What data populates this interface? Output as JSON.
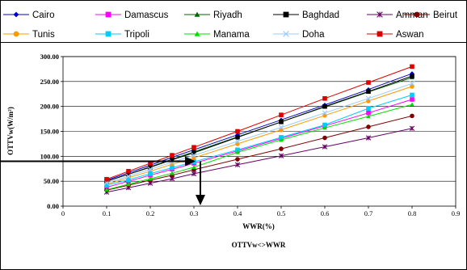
{
  "chart_data": {
    "type": "line",
    "title": "OTTVw<>WWR",
    "xlabel": "WWR(%)",
    "ylabel": "OTTVw(W/m²)",
    "xlim": [
      0,
      0.9
    ],
    "ylim": [
      0,
      300
    ],
    "x_ticks": [
      "0",
      "0.1",
      "0.2",
      "0.3",
      "0.4",
      "0.5",
      "0.6",
      "0.7",
      "0.8",
      "0.9"
    ],
    "y_ticks": [
      "0.00",
      "50.00",
      "100.00",
      "150.00",
      "200.00",
      "250.00",
      "300.00"
    ],
    "legend_position": "top",
    "grid": "horizontal",
    "x": [
      0.1,
      0.15,
      0.2,
      0.25,
      0.3,
      0.4,
      0.5,
      0.6,
      0.7,
      0.8
    ],
    "series": [
      {
        "name": "Cairo",
        "color": "#0000cc",
        "marker": "diamond",
        "values": [
          52,
          67,
          82,
          98,
          113,
          143,
          173,
          203,
          234,
          266
        ]
      },
      {
        "name": "Damascus",
        "color": "#ff00ff",
        "marker": "square",
        "values": [
          38,
          50,
          62,
          74,
          86,
          111,
          136,
          161,
          187,
          214
        ]
      },
      {
        "name": "Riyadh",
        "color": "#006600",
        "marker": "triangle",
        "values": [
          50,
          64,
          79,
          94,
          109,
          139,
          169,
          199,
          229,
          258
        ]
      },
      {
        "name": "Baghdad",
        "color": "#000000",
        "marker": "square",
        "values": [
          50,
          64,
          78,
          93,
          107,
          138,
          169,
          200,
          230,
          261
        ]
      },
      {
        "name": "Amman",
        "color": "#660066",
        "marker": "star",
        "values": [
          28,
          37,
          46,
          55,
          65,
          83,
          101,
          119,
          137,
          156
        ]
      },
      {
        "name": "Beirut",
        "color": "#800000",
        "marker": "circle",
        "values": [
          32,
          42,
          52,
          62,
          73,
          94,
          115,
          137,
          159,
          181
        ]
      },
      {
        "name": "Tunis",
        "color": "#ff9900",
        "marker": "circle",
        "values": [
          44,
          57,
          70,
          84,
          97,
          125,
          153,
          182,
          211,
          240
        ]
      },
      {
        "name": "Tripoli",
        "color": "#00ccff",
        "marker": "square",
        "values": [
          42,
          53,
          65,
          77,
          89,
          113,
          138,
          163,
          196,
          223
        ]
      },
      {
        "name": "Manama",
        "color": "#00dd00",
        "marker": "triangle",
        "values": [
          33,
          44,
          55,
          66,
          78,
          108,
          133,
          157,
          180,
          204
        ]
      },
      {
        "name": "Doha",
        "color": "#99ccff",
        "marker": "x",
        "values": [
          47,
          60,
          74,
          88,
          102,
          130,
          158,
          187,
          216,
          246
        ]
      },
      {
        "name": "Aswan",
        "color": "#dd0000",
        "marker": "square",
        "values": [
          54,
          70,
          86,
          102,
          118,
          150,
          183,
          216,
          248,
          280
        ]
      }
    ],
    "annotation": {
      "x": 0.3,
      "y": 90
    }
  }
}
